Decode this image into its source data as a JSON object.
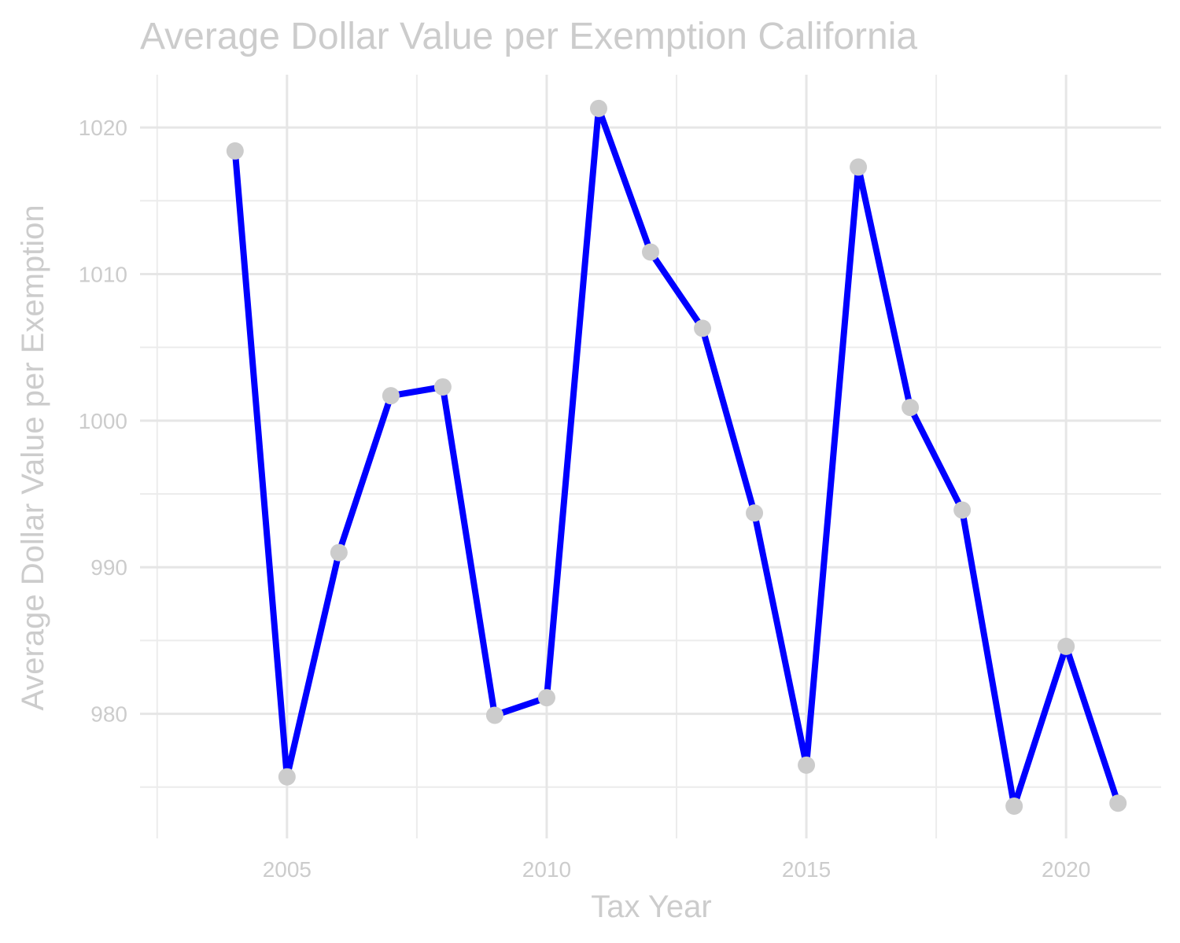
{
  "chart_data": {
    "type": "line",
    "title": "Average Dollar Value per Exemption California",
    "xlabel": "Tax Year",
    "ylabel": "Average Dollar Value per Exemption",
    "x": [
      2004,
      2005,
      2006,
      2007,
      2008,
      2009,
      2010,
      2011,
      2012,
      2013,
      2014,
      2015,
      2016,
      2017,
      2018,
      2019,
      2020,
      2021
    ],
    "series": [
      {
        "values": [
          1018.4,
          975.7,
          991.0,
          1001.7,
          1002.3,
          979.9,
          981.1,
          1021.3,
          1011.5,
          1006.3,
          993.7,
          976.5,
          1017.3,
          1000.9,
          993.9,
          973.7,
          984.6,
          973.9
        ],
        "line_color": "#0000ff",
        "marker_color": "#cccccc"
      }
    ],
    "x_ticks": [
      2005,
      2010,
      2015,
      2020
    ],
    "y_ticks": [
      980,
      990,
      1000,
      1010,
      1020
    ],
    "xlim": [
      2002.17,
      2021.83
    ],
    "ylim": [
      971.5,
      1023.6
    ],
    "grid": true,
    "legend": "none"
  }
}
